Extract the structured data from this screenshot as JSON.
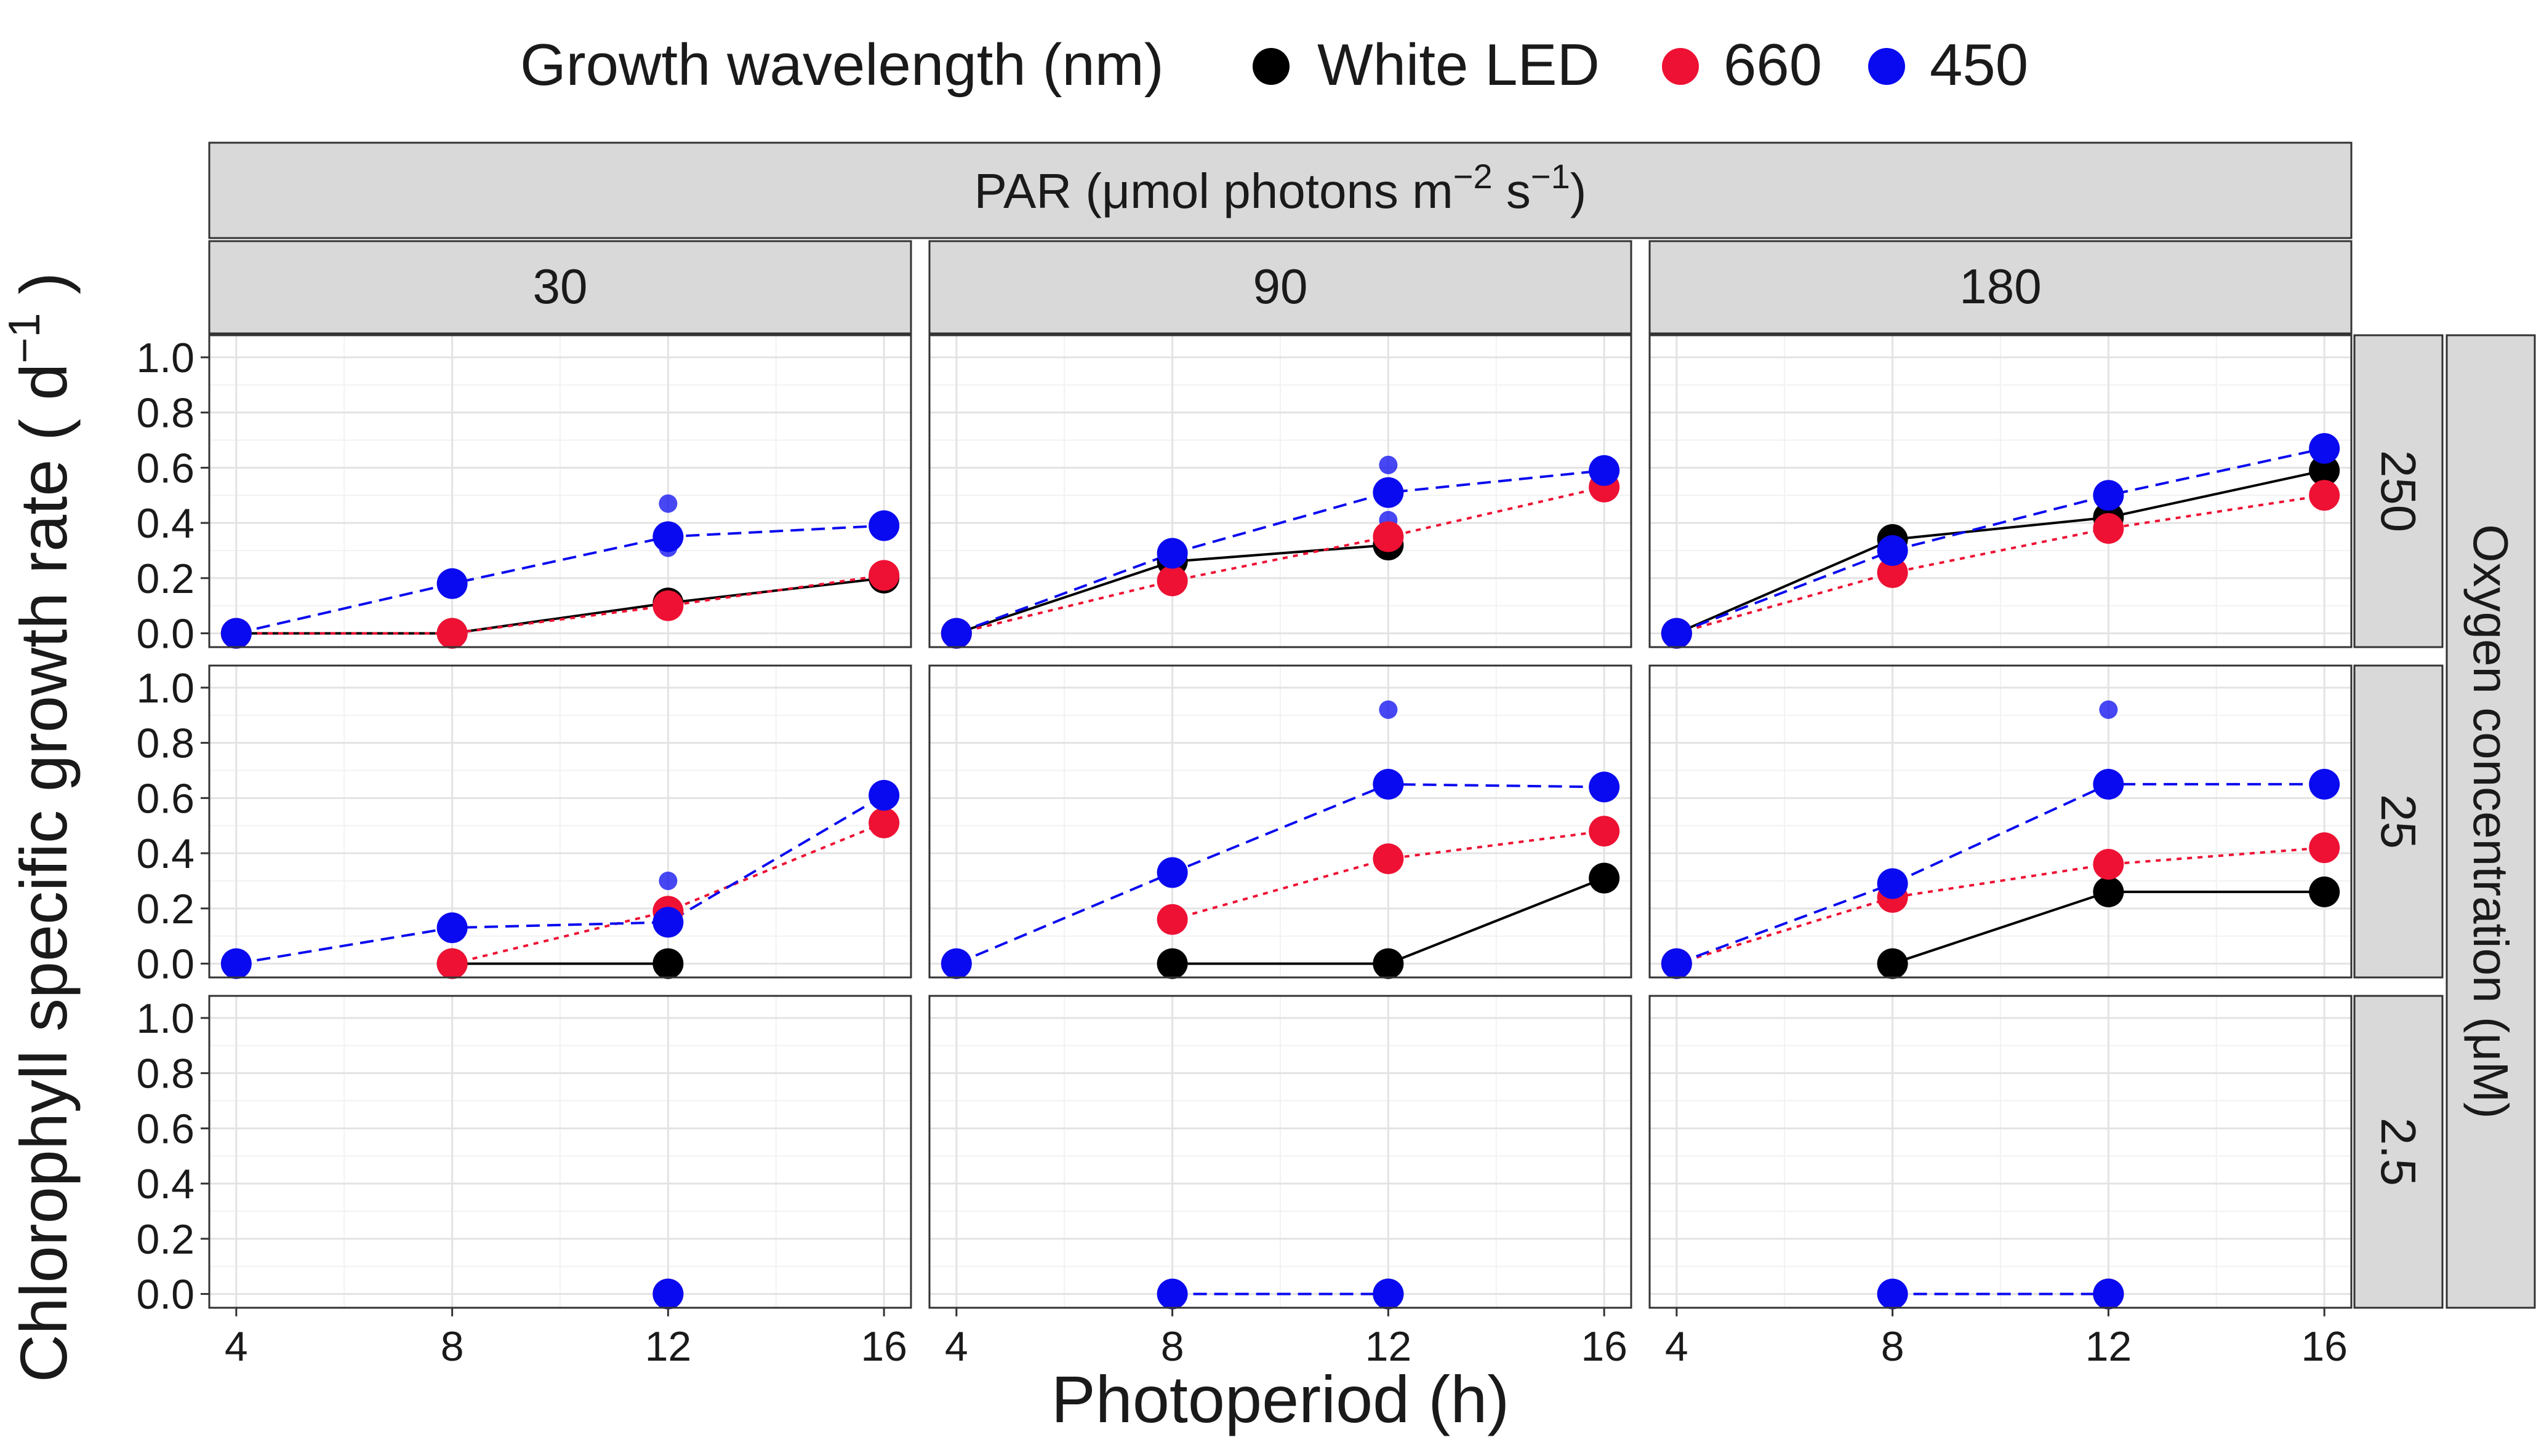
{
  "chart_data": {
    "type": "line",
    "legend": {
      "title": "Growth wavelength (nm)",
      "position": "top",
      "entries": [
        {
          "name": "White LED",
          "color": "#000000"
        },
        {
          "name": "660",
          "color": "#EE1133"
        },
        {
          "name": "450",
          "color": "#0A0AF0"
        }
      ]
    },
    "xlabel": "Photoperiod (h)",
    "ylabel": "Chlorophyll specific growth rate",
    "ylabel_unit_base": "( d",
    "ylabel_unit_exp": "−1",
    "ylabel_unit_close": " )",
    "col_strip_title": {
      "pre": "PAR (μmol photons m",
      "exp1": "−2",
      "mid": " s",
      "exp2": "−1",
      "post": ")"
    },
    "row_strip_title": "Oxygen concentration (μM)",
    "col_facets": [
      "30",
      "90",
      "180"
    ],
    "row_facets": [
      "250",
      "25",
      "2.5"
    ],
    "x_ticks": [
      4,
      8,
      12,
      16
    ],
    "y_ticks": [
      "0.0",
      "0.2",
      "0.4",
      "0.6",
      "0.8",
      "1.0"
    ],
    "xlim": [
      3.5,
      16.5
    ],
    "ylim": [
      -0.05,
      1.08
    ],
    "grid": true,
    "panels": [
      {
        "row": "250",
        "col": "30",
        "series": [
          {
            "name": "White LED",
            "points": [
              [
                4,
                0.0
              ],
              [
                8,
                0.0
              ],
              [
                12,
                0.11
              ],
              [
                16,
                0.2
              ]
            ],
            "extra": []
          },
          {
            "name": "660",
            "points": [
              [
                4,
                0.0
              ],
              [
                8,
                0.0
              ],
              [
                12,
                0.1
              ],
              [
                16,
                0.21
              ]
            ],
            "extra": []
          },
          {
            "name": "450",
            "points": [
              [
                4,
                0.0
              ],
              [
                8,
                0.18
              ],
              [
                12,
                0.35
              ],
              [
                16,
                0.39
              ]
            ],
            "extra": [
              [
                12,
                0.47
              ],
              [
                12,
                0.31
              ]
            ]
          }
        ]
      },
      {
        "row": "250",
        "col": "90",
        "series": [
          {
            "name": "White LED",
            "points": [
              [
                4,
                0.0
              ],
              [
                8,
                0.26
              ],
              [
                12,
                0.32
              ]
            ],
            "extra": []
          },
          {
            "name": "660",
            "points": [
              [
                4,
                0.0
              ],
              [
                8,
                0.19
              ],
              [
                12,
                0.35
              ],
              [
                16,
                0.53
              ]
            ],
            "extra": []
          },
          {
            "name": "450",
            "points": [
              [
                4,
                0.0
              ],
              [
                8,
                0.29
              ],
              [
                12,
                0.51
              ],
              [
                16,
                0.59
              ]
            ],
            "extra": [
              [
                12,
                0.61
              ],
              [
                12,
                0.41
              ]
            ]
          }
        ]
      },
      {
        "row": "250",
        "col": "180",
        "series": [
          {
            "name": "White LED",
            "points": [
              [
                4,
                0.0
              ],
              [
                8,
                0.34
              ],
              [
                12,
                0.42
              ],
              [
                16,
                0.59
              ]
            ],
            "extra": []
          },
          {
            "name": "660",
            "points": [
              [
                4,
                0.0
              ],
              [
                8,
                0.22
              ],
              [
                12,
                0.38
              ],
              [
                16,
                0.5
              ]
            ],
            "extra": []
          },
          {
            "name": "450",
            "points": [
              [
                4,
                0.0
              ],
              [
                8,
                0.3
              ],
              [
                12,
                0.5
              ],
              [
                16,
                0.67
              ]
            ],
            "extra": []
          }
        ]
      },
      {
        "row": "25",
        "col": "30",
        "series": [
          {
            "name": "White LED",
            "points": [
              [
                8,
                0.0
              ],
              [
                12,
                0.0
              ]
            ],
            "extra": []
          },
          {
            "name": "660",
            "points": [
              [
                8,
                0.0
              ],
              [
                12,
                0.19
              ],
              [
                16,
                0.51
              ]
            ],
            "extra": []
          },
          {
            "name": "450",
            "points": [
              [
                4,
                0.0
              ],
              [
                8,
                0.13
              ],
              [
                12,
                0.15
              ],
              [
                16,
                0.61
              ]
            ],
            "extra": [
              [
                12,
                0.3
              ]
            ]
          }
        ]
      },
      {
        "row": "25",
        "col": "90",
        "series": [
          {
            "name": "White LED",
            "points": [
              [
                8,
                0.0
              ],
              [
                12,
                0.0
              ],
              [
                16,
                0.31
              ]
            ],
            "extra": []
          },
          {
            "name": "660",
            "points": [
              [
                8,
                0.16
              ],
              [
                12,
                0.38
              ],
              [
                16,
                0.48
              ]
            ],
            "extra": []
          },
          {
            "name": "450",
            "points": [
              [
                4,
                0.0
              ],
              [
                8,
                0.33
              ],
              [
                12,
                0.65
              ],
              [
                16,
                0.64
              ]
            ],
            "extra": [
              [
                12,
                0.92
              ]
            ]
          }
        ]
      },
      {
        "row": "25",
        "col": "180",
        "series": [
          {
            "name": "White LED",
            "points": [
              [
                8,
                0.0
              ],
              [
                12,
                0.26
              ],
              [
                16,
                0.26
              ]
            ],
            "extra": []
          },
          {
            "name": "660",
            "points": [
              [
                4,
                0.0
              ],
              [
                8,
                0.24
              ],
              [
                12,
                0.36
              ],
              [
                16,
                0.42
              ]
            ],
            "extra": []
          },
          {
            "name": "450",
            "points": [
              [
                4,
                0.0
              ],
              [
                8,
                0.29
              ],
              [
                12,
                0.65
              ],
              [
                16,
                0.65
              ]
            ],
            "extra": [
              [
                12,
                0.92
              ]
            ]
          }
        ]
      },
      {
        "row": "2.5",
        "col": "30",
        "series": [
          {
            "name": "White LED",
            "points": [],
            "extra": []
          },
          {
            "name": "660",
            "points": [
              [
                12,
                0.0
              ]
            ],
            "extra": []
          },
          {
            "name": "450",
            "points": [
              [
                12,
                0.0
              ]
            ],
            "extra": []
          }
        ]
      },
      {
        "row": "2.5",
        "col": "90",
        "series": [
          {
            "name": "White LED",
            "points": [
              [
                12,
                0.0
              ]
            ],
            "extra": []
          },
          {
            "name": "660",
            "points": [],
            "extra": []
          },
          {
            "name": "450",
            "points": [
              [
                8,
                0.0
              ],
              [
                12,
                0.0
              ]
            ],
            "extra": []
          }
        ]
      },
      {
        "row": "2.5",
        "col": "180",
        "series": [
          {
            "name": "White LED",
            "points": [
              [
                12,
                0.0
              ]
            ],
            "extra": []
          },
          {
            "name": "660",
            "points": [
              [
                12,
                0.0
              ]
            ],
            "extra": []
          },
          {
            "name": "450",
            "points": [
              [
                8,
                0.0
              ],
              [
                12,
                0.0
              ]
            ],
            "extra": []
          }
        ]
      }
    ]
  }
}
